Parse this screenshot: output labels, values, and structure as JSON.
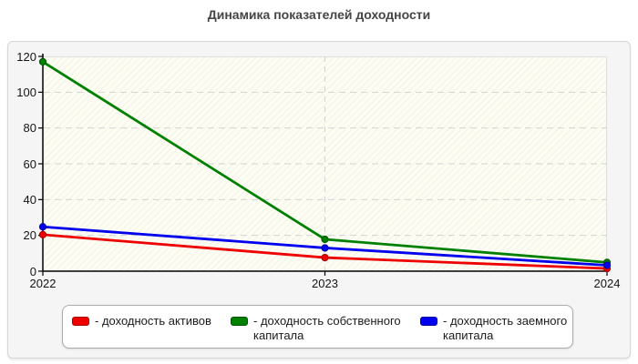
{
  "page": {
    "title": "Динамика показателей доходности"
  },
  "chart_data": {
    "type": "line",
    "title": "Динамика показателей доходности",
    "categories": [
      "2022",
      "2023",
      "2024"
    ],
    "series": [
      {
        "name": "доходность активов",
        "color": "#ee0000",
        "edge": "#aa0000",
        "values": [
          20.4,
          7.6,
          1.5
        ]
      },
      {
        "name": "доходность собственного капитала",
        "color": "#008000",
        "edge": "#005200",
        "values": [
          117.0,
          17.8,
          4.9
        ]
      },
      {
        "name": "доходность заемного капитала",
        "color": "#0000ee",
        "edge": "#0000a0",
        "values": [
          24.8,
          13.0,
          3.3
        ]
      }
    ],
    "y_ticks": [
      0,
      20,
      40,
      60,
      80,
      100,
      120
    ],
    "ylim": [
      0,
      120
    ],
    "xlabel": "",
    "ylabel": "",
    "grid": "dashed horizontal at y ticks, dashed vertical at inner x ticks",
    "legend_position": "bottom",
    "legend_prefix": "-",
    "gridline_color": "#d2d2d2",
    "axis_color": "#000000"
  }
}
